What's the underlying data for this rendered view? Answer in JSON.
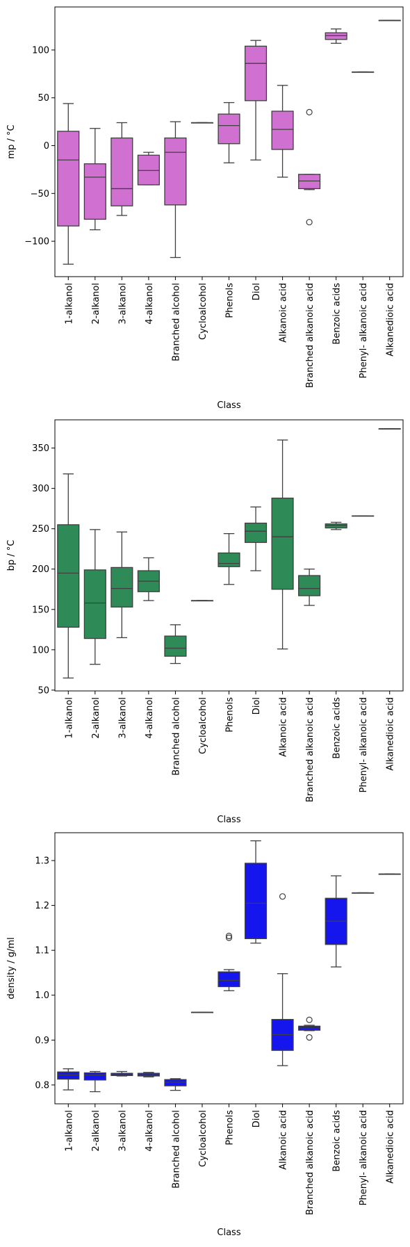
{
  "chart_data": [
    {
      "type": "box",
      "xlabel": "Class",
      "ylabel": "mp / °C",
      "ylim": [
        -137,
        145
      ],
      "yticks": [
        -100,
        -50,
        0,
        50,
        100
      ],
      "color": "#d070d0",
      "categories": [
        "1-alkanol",
        "2-alkanol",
        "3-alkanol",
        "4-alkanol",
        "Branched alcohol",
        "Cycloalcohol",
        "Phenols",
        "Diol",
        "Alkanoic acid",
        "Branched alkanoic acid",
        "Benzoic acids",
        "Phenyl- alkanoic acid",
        "Alkanedioic acid"
      ],
      "boxes": [
        {
          "wlo": -124,
          "q1": -84,
          "med": -15,
          "q3": 15,
          "whi": 44,
          "outliers": []
        },
        {
          "wlo": -88,
          "q1": -77,
          "med": -33,
          "q3": -19,
          "whi": 18,
          "outliers": []
        },
        {
          "wlo": -73,
          "q1": -63,
          "med": -45,
          "q3": 8,
          "whi": 24,
          "outliers": []
        },
        {
          "wlo": -41,
          "q1": -41,
          "med": -26,
          "q3": -10,
          "whi": -7,
          "outliers": []
        },
        {
          "wlo": -117,
          "q1": -62,
          "med": -7,
          "q3": 8,
          "whi": 25,
          "outliers": []
        },
        {
          "wlo": 24,
          "q1": 24,
          "med": 24,
          "q3": 24,
          "whi": 24,
          "outliers": []
        },
        {
          "wlo": -18,
          "q1": 2,
          "med": 21,
          "q3": 33,
          "whi": 45,
          "outliers": []
        },
        {
          "wlo": -15,
          "q1": 47,
          "med": 86,
          "q3": 104,
          "whi": 110,
          "outliers": []
        },
        {
          "wlo": -33,
          "q1": -4,
          "med": 17,
          "q3": 36,
          "whi": 63,
          "outliers": []
        },
        {
          "wlo": -46,
          "q1": -45,
          "med": -37,
          "q3": -30,
          "whi": -30,
          "outliers": [
            35,
            -80
          ]
        },
        {
          "wlo": 107,
          "q1": 111,
          "med": 115,
          "q3": 118,
          "whi": 122,
          "outliers": []
        },
        {
          "wlo": 77,
          "q1": 77,
          "med": 77,
          "q3": 77,
          "whi": 77,
          "outliers": []
        },
        {
          "wlo": 131,
          "q1": 131,
          "med": 131,
          "q3": 131,
          "whi": 131,
          "outliers": []
        }
      ]
    },
    {
      "type": "box",
      "xlabel": "Class",
      "ylabel": "bp / °C",
      "ylim": [
        49,
        385
      ],
      "yticks": [
        50,
        100,
        150,
        200,
        250,
        300,
        350
      ],
      "color": "#2e8b57",
      "categories": [
        "1-alkanol",
        "2-alkanol",
        "3-alkanol",
        "4-alkanol",
        "Branched alcohol",
        "Cycloalcohol",
        "Phenols",
        "Diol",
        "Alkanoic acid",
        "Branched alkanoic acid",
        "Benzoic acids",
        "Phenyl- alkanoic acid",
        "Alkanedioic acid"
      ],
      "boxes": [
        {
          "wlo": 65,
          "q1": 128,
          "med": 195,
          "q3": 255,
          "whi": 318,
          "outliers": []
        },
        {
          "wlo": 82,
          "q1": 114,
          "med": 158,
          "q3": 199,
          "whi": 249,
          "outliers": []
        },
        {
          "wlo": 115,
          "q1": 153,
          "med": 176,
          "q3": 202,
          "whi": 246,
          "outliers": []
        },
        {
          "wlo": 161,
          "q1": 172,
          "med": 185,
          "q3": 198,
          "whi": 214,
          "outliers": []
        },
        {
          "wlo": 83,
          "q1": 92,
          "med": 102,
          "q3": 117,
          "whi": 131,
          "outliers": []
        },
        {
          "wlo": 161,
          "q1": 161,
          "med": 161,
          "q3": 161,
          "whi": 161,
          "outliers": []
        },
        {
          "wlo": 181,
          "q1": 203,
          "med": 207,
          "q3": 220,
          "whi": 244,
          "outliers": []
        },
        {
          "wlo": 198,
          "q1": 233,
          "med": 247,
          "q3": 257,
          "whi": 277,
          "outliers": []
        },
        {
          "wlo": 101,
          "q1": 175,
          "med": 240,
          "q3": 288,
          "whi": 360,
          "outliers": []
        },
        {
          "wlo": 155,
          "q1": 167,
          "med": 176,
          "q3": 192,
          "whi": 200,
          "outliers": []
        },
        {
          "wlo": 249,
          "q1": 251,
          "med": 254,
          "q3": 256,
          "whi": 258,
          "outliers": []
        },
        {
          "wlo": 266,
          "q1": 266,
          "med": 266,
          "q3": 266,
          "whi": 266,
          "outliers": []
        },
        {
          "wlo": 374,
          "q1": 374,
          "med": 374,
          "q3": 374,
          "whi": 374,
          "outliers": []
        }
      ]
    },
    {
      "type": "box",
      "xlabel": "Class",
      "ylabel": "density / g/ml",
      "ylim": [
        0.758,
        1.362
      ],
      "yticks": [
        0.8,
        0.9,
        1.0,
        1.1,
        1.2,
        1.3
      ],
      "color": "#1515ee",
      "categories": [
        "1-alkanol",
        "2-alkanol",
        "3-alkanol",
        "4-alkanol",
        "Branched alcohol",
        "Cycloalcohol",
        "Phenols",
        "Diol",
        "Alkanoic acid",
        "Branched alkanoic acid",
        "Benzoic acids",
        "Phenyl- alkanoic acid",
        "Alkanedioic acid"
      ],
      "boxes": [
        {
          "wlo": 0.789,
          "q1": 0.813,
          "med": 0.822,
          "q3": 0.829,
          "whi": 0.836,
          "outliers": []
        },
        {
          "wlo": 0.785,
          "q1": 0.811,
          "med": 0.822,
          "q3": 0.827,
          "whi": 0.83,
          "outliers": []
        },
        {
          "wlo": 0.82,
          "q1": 0.821,
          "med": 0.823,
          "q3": 0.826,
          "whi": 0.83,
          "outliers": []
        },
        {
          "wlo": 0.818,
          "q1": 0.82,
          "med": 0.823,
          "q3": 0.826,
          "whi": 0.828,
          "outliers": []
        },
        {
          "wlo": 0.788,
          "q1": 0.798,
          "med": 0.806,
          "q3": 0.812,
          "whi": 0.814,
          "outliers": []
        },
        {
          "wlo": 0.962,
          "q1": 0.962,
          "med": 0.962,
          "q3": 0.962,
          "whi": 0.962,
          "outliers": []
        },
        {
          "wlo": 1.01,
          "q1": 1.019,
          "med": 1.033,
          "q3": 1.052,
          "whi": 1.057,
          "outliers": [
            1.128,
            1.132
          ]
        },
        {
          "wlo": 1.116,
          "q1": 1.126,
          "med": 1.205,
          "q3": 1.294,
          "whi": 1.344,
          "outliers": []
        },
        {
          "wlo": 0.843,
          "q1": 0.877,
          "med": 0.912,
          "q3": 0.946,
          "whi": 1.048,
          "outliers": [
            1.22
          ]
        },
        {
          "wlo": 0.921,
          "q1": 0.922,
          "med": 0.927,
          "q3": 0.931,
          "whi": 0.933,
          "outliers": [
            0.945,
            0.906
          ]
        },
        {
          "wlo": 1.063,
          "q1": 1.113,
          "med": 1.165,
          "q3": 1.216,
          "whi": 1.266,
          "outliers": []
        },
        {
          "wlo": 1.228,
          "q1": 1.228,
          "med": 1.228,
          "q3": 1.228,
          "whi": 1.228,
          "outliers": []
        },
        {
          "wlo": 1.27,
          "q1": 1.27,
          "med": 1.27,
          "q3": 1.27,
          "whi": 1.27,
          "outliers": []
        }
      ]
    }
  ]
}
